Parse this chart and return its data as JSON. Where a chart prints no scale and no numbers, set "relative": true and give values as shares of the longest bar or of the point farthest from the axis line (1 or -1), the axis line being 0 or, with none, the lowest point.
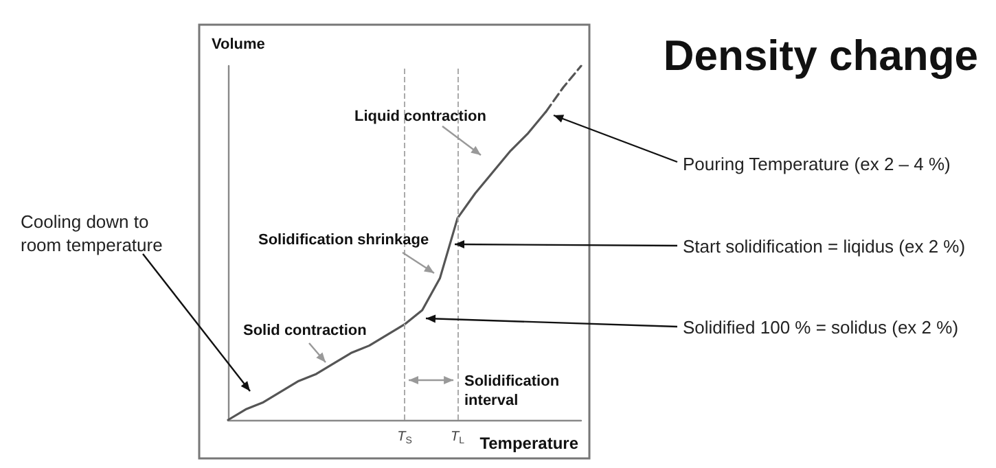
{
  "chart_data": {
    "type": "line",
    "title": "Density change",
    "xlabel": "Temperature",
    "ylabel": "Volume",
    "relative": true,
    "categories": [
      null,
      null,
      null,
      null,
      null,
      null,
      null,
      null,
      null,
      null,
      "T$_{S}$",
      null,
      null,
      "T$_{L}$",
      null,
      null,
      null,
      null,
      null,
      null,
      null
    ],
    "series": [
      {
        "color": "#555555",
        "values": [
          0,
          0.03,
          0.05,
          0.08,
          0.11,
          0.13,
          0.16,
          0.19,
          0.21,
          0.24,
          0.27,
          0.31,
          0.4,
          0.57,
          0.64,
          0.7,
          0.76,
          0.81,
          0.87,
          null,
          null
        ]
      },
      {
        "color": "#555555",
        "line_style": "dashed",
        "values": [
          null,
          null,
          null,
          null,
          null,
          null,
          null,
          null,
          null,
          null,
          null,
          null,
          null,
          null,
          null,
          null,
          null,
          null,
          0.87,
          0.94,
          1
        ]
      }
    ],
    "ref_lines": [
      {
        "axis": "x",
        "value": "T$_{S}$",
        "color": "#aaaaaa",
        "line_style": "dashed"
      },
      {
        "axis": "x",
        "value": "T$_{L}$",
        "color": "#aaaaaa",
        "line_style": "dashed"
      }
    ],
    "annotations": [
      "Liquid contraction",
      "Solidification shrinkage",
      "Solid contraction",
      "Solidification interval",
      "Pouring Temperature (ex 2 – 4 %)",
      "Start solidification = liqidus (ex 2 %)",
      "Solidified 100 % = solidus (ex 2 %)",
      "Cooling down to room temperature"
    ]
  }
}
